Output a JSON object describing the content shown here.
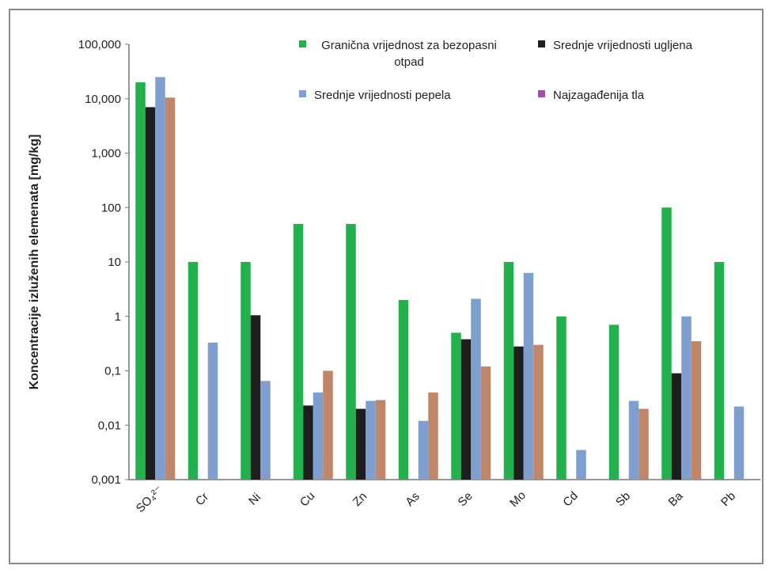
{
  "chart_data": {
    "type": "bar",
    "y_label": "Koncentracije izluženih elemenata [mg/kg]",
    "categories": [
      "SO₄²⁻",
      "Cr",
      "Ni",
      "Cu",
      "Zn",
      "As",
      "Se",
      "Mo",
      "Cd",
      "Sb",
      "Ba",
      "Pb"
    ],
    "series": [
      {
        "name": "Granična vrijednost za bezopasni otpad",
        "color": "#22b14c",
        "values": [
          20000,
          10,
          10,
          50,
          50,
          2,
          0.5,
          10,
          1,
          0.7,
          100,
          10
        ]
      },
      {
        "name": "Srednje vrijednosti ugljena",
        "color": "#1e1e1e",
        "values": [
          7000,
          null,
          1.05,
          0.023,
          0.02,
          null,
          0.38,
          0.28,
          null,
          null,
          0.09,
          null
        ]
      },
      {
        "name": "Srednje vrijednosti pepela",
        "color": "#7f9fd0",
        "values": [
          25000,
          0.33,
          0.065,
          0.04,
          0.028,
          0.012,
          2.1,
          6.3,
          0.0035,
          0.028,
          1,
          0.022
        ]
      },
      {
        "name": "Najzagađenija tla",
        "color": "#c0866a",
        "legend_color": "#a24fa6",
        "values": [
          10500,
          null,
          null,
          0.1,
          0.029,
          0.04,
          0.12,
          0.3,
          null,
          0.02,
          0.35,
          null
        ]
      }
    ],
    "log_scale": true,
    "ylim": [
      0.001,
      100000
    ],
    "yticks": [
      {
        "value": 0.001,
        "label": "0,001"
      },
      {
        "value": 0.01,
        "label": "0,01"
      },
      {
        "value": 0.1,
        "label": "0,1"
      },
      1,
      10,
      100,
      {
        "value": 1000,
        "label": "1,000"
      },
      {
        "value": 10000,
        "label": "10,000"
      },
      {
        "value": 100000,
        "label": "100,000"
      }
    ],
    "grid": false
  }
}
